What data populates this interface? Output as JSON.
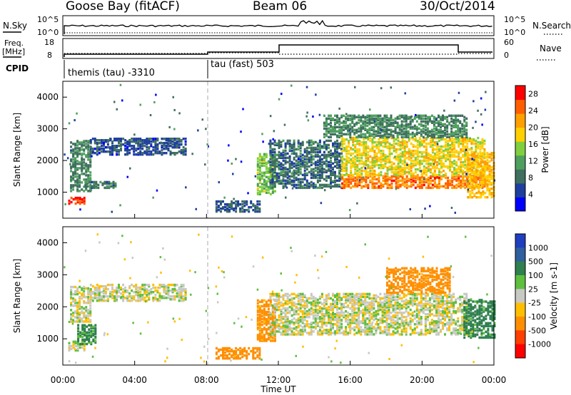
{
  "header": {
    "station": "Goose Bay (fitACF)",
    "beam": "Beam 06",
    "date": "30/Oct/2014"
  },
  "noise_panel": {
    "left_label": "N.Sky",
    "left_ticks": [
      "10^5",
      "10^0"
    ],
    "right_label": "N.Search",
    "right_ticks": [
      "10^5",
      "10^0"
    ]
  },
  "freq_panel": {
    "left_label_1": "Freq.",
    "left_label_2": "[MHz]",
    "left_ticks": [
      "18",
      "8"
    ],
    "right_label": "Nave",
    "right_ticks": [
      "60",
      "0"
    ]
  },
  "cpid": {
    "label": "CPID",
    "programs": [
      "themis (tau) -3310",
      "tau (fast) 503"
    ]
  },
  "colors": {
    "power_scale": [
      "#0000ff",
      "#1f3f9f",
      "#3f6f5f",
      "#4f9f5f",
      "#7fcf3f",
      "#ffcf00",
      "#ff9f00",
      "#ff5f00",
      "#ff0000"
    ],
    "velocity_scale": [
      "#1f3fbf",
      "#2f5f9f",
      "#2f7f4f",
      "#5fbf3f",
      "#c8c8c4",
      "#ffbf00",
      "#ff8f00",
      "#ff3f00",
      "#ff0000"
    ]
  },
  "chart_data": [
    {
      "type": "heatmap",
      "name": "power",
      "xlabel": "Time UT",
      "ylabel": "Slant Range [km]",
      "xlim": [
        "00:00",
        "24:00"
      ],
      "ylim": [
        180,
        4500
      ],
      "x_ticks": [
        "00:00",
        "04:00",
        "08:00",
        "12:00",
        "16:00",
        "20:00",
        "00:00"
      ],
      "y_ticks": [
        1000,
        2000,
        3000,
        4000
      ],
      "colorbar": {
        "label": "Power [dB]",
        "ticks": [
          "4",
          "8",
          "12",
          "16",
          "20",
          "24",
          "28"
        ],
        "range": [
          0,
          30
        ]
      },
      "echo_regions": [
        {
          "t_start": 0.3,
          "t_end": 1.2,
          "r_min": 600,
          "r_max": 800,
          "level": 27
        },
        {
          "t_start": 0.4,
          "t_end": 1.5,
          "r_min": 1000,
          "r_max": 2600,
          "level": 10
        },
        {
          "t_start": 1.5,
          "t_end": 6.8,
          "r_min": 2150,
          "r_max": 2650,
          "level": 6
        },
        {
          "t_start": 1.2,
          "t_end": 3.0,
          "r_min": 1100,
          "r_max": 1300,
          "level": 9
        },
        {
          "t_start": 8.5,
          "t_end": 11.0,
          "r_min": 350,
          "r_max": 700,
          "level": 7
        },
        {
          "t_start": 10.8,
          "t_end": 11.8,
          "r_min": 900,
          "r_max": 2200,
          "level": 14
        },
        {
          "t_start": 11.5,
          "t_end": 15.5,
          "r_min": 1100,
          "r_max": 2600,
          "level": 8
        },
        {
          "t_start": 15.5,
          "t_end": 23.5,
          "r_min": 1100,
          "r_max": 1500,
          "level": 24
        },
        {
          "t_start": 15.5,
          "t_end": 23.5,
          "r_min": 1500,
          "r_max": 2700,
          "level": 18
        },
        {
          "t_start": 14.5,
          "t_end": 22.5,
          "r_min": 2700,
          "r_max": 3400,
          "level": 10
        },
        {
          "t_start": 22.5,
          "t_end": 24.0,
          "r_min": 800,
          "r_max": 2200,
          "level": 20
        }
      ]
    },
    {
      "type": "heatmap",
      "name": "velocity",
      "xlabel": "Time UT",
      "ylabel": "Slant Range [km]",
      "xlim": [
        "00:00",
        "24:00"
      ],
      "ylim": [
        180,
        4500
      ],
      "x_ticks": [
        "00:00",
        "04:00",
        "08:00",
        "12:00",
        "16:00",
        "20:00",
        "00:00"
      ],
      "y_ticks": [
        1000,
        2000,
        3000,
        4000
      ],
      "colorbar": {
        "label": "Velocity [m s-1]",
        "ticks": [
          "1000",
          "500",
          "100",
          "25",
          "-25",
          "-100",
          "-500",
          "-1000"
        ]
      },
      "echo_regions": [
        {
          "t_start": 0.3,
          "t_end": 1.2,
          "r_min": 600,
          "r_max": 900,
          "level": 0
        },
        {
          "t_start": 0.8,
          "t_end": 1.8,
          "r_min": 800,
          "r_max": 1400,
          "level": 120
        },
        {
          "t_start": 0.4,
          "t_end": 1.5,
          "r_min": 1500,
          "r_max": 2600,
          "level": 0
        },
        {
          "t_start": 1.5,
          "t_end": 6.8,
          "r_min": 2150,
          "r_max": 2650,
          "level": 0
        },
        {
          "t_start": 8.5,
          "t_end": 11.0,
          "r_min": 350,
          "r_max": 700,
          "level": -200
        },
        {
          "t_start": 10.8,
          "t_end": 11.8,
          "r_min": 900,
          "r_max": 2200,
          "level": -150
        },
        {
          "t_start": 11.5,
          "t_end": 22.5,
          "r_min": 1100,
          "r_max": 2400,
          "level": 0
        },
        {
          "t_start": 18.0,
          "t_end": 21.5,
          "r_min": 2400,
          "r_max": 3200,
          "level": -200
        },
        {
          "t_start": 22.3,
          "t_end": 24.0,
          "r_min": 1000,
          "r_max": 2200,
          "level": 150
        }
      ]
    }
  ]
}
